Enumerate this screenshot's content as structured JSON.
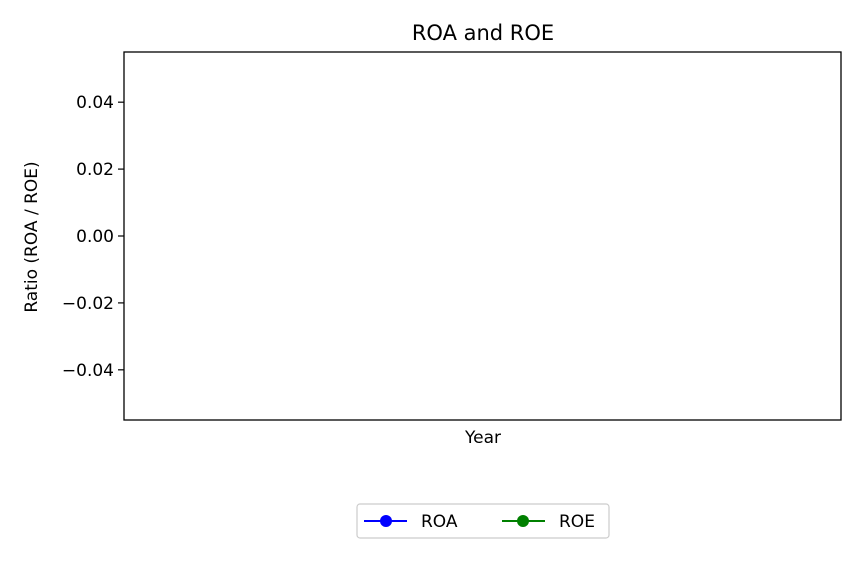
{
  "chart_data": {
    "type": "line",
    "title": "ROA and ROE",
    "xlabel": "Year",
    "ylabel": "Ratio (ROA / ROE)",
    "x": [],
    "series": [
      {
        "name": "ROA",
        "values": [],
        "color": "#0000ff",
        "marker": "circle"
      },
      {
        "name": "ROE",
        "values": [],
        "color": "#008000",
        "marker": "circle"
      }
    ],
    "ylim": [
      -0.055,
      0.055
    ],
    "yticks": [
      0.04,
      0.02,
      0.0,
      -0.02,
      -0.04
    ],
    "ytick_labels": [
      "0.04",
      "0.02",
      "0.00",
      "−0.02",
      "−0.04"
    ],
    "xticks": [],
    "grid": false,
    "legend_position": "bottom-center",
    "legend_columns": 2
  }
}
